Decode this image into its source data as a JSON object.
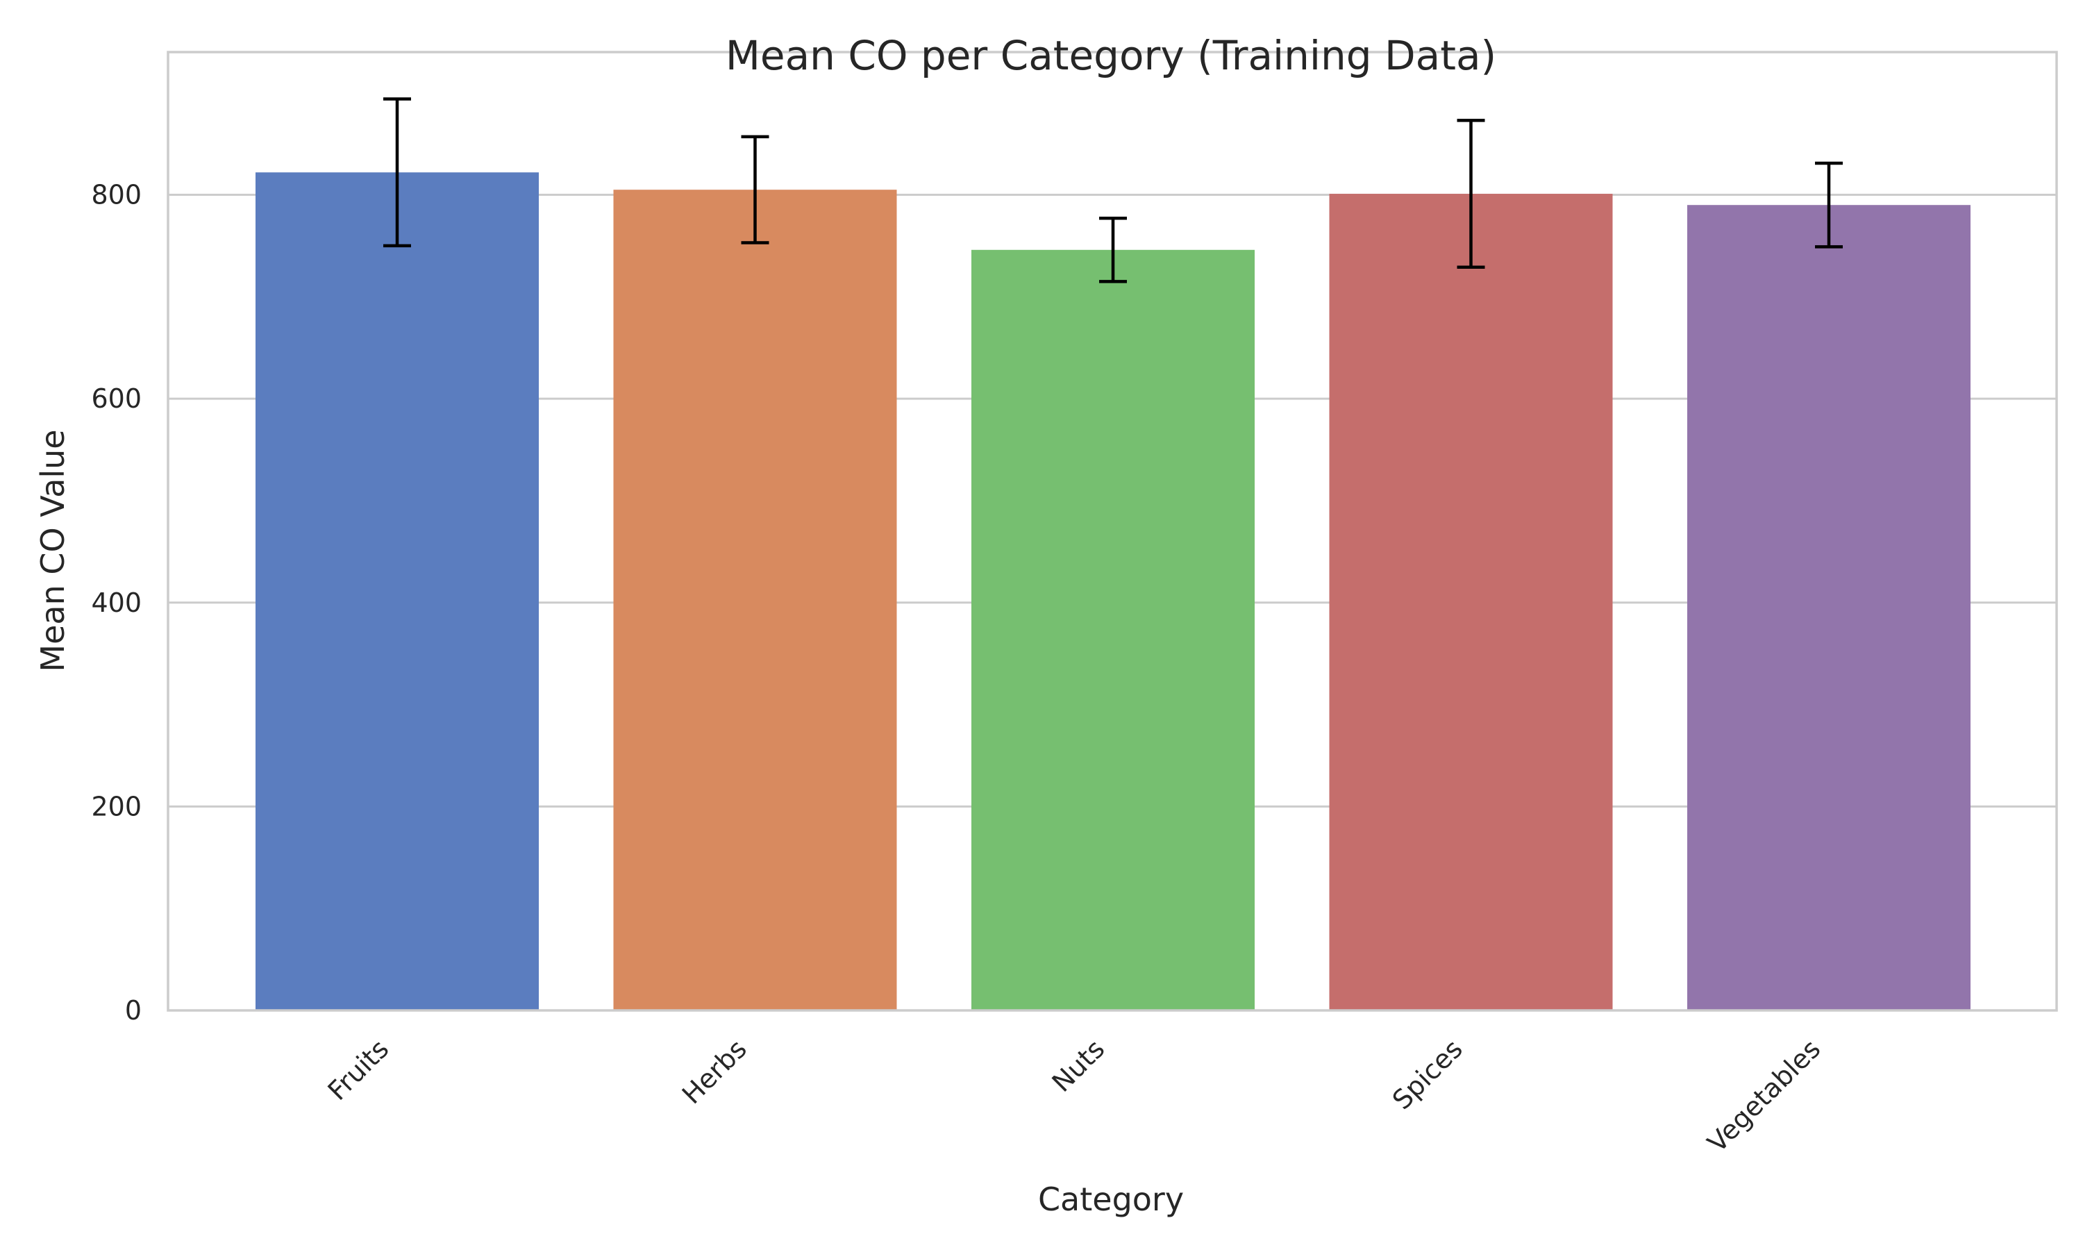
{
  "chart_data": {
    "type": "bar",
    "title": "Mean CO per Category (Training Data)",
    "xlabel": "Category",
    "ylabel": "Mean CO Value",
    "categories": [
      "Fruits",
      "Herbs",
      "Nuts",
      "Spices",
      "Vegetables"
    ],
    "values": [
      822,
      805,
      746,
      801,
      790
    ],
    "error": [
      72,
      52,
      31,
      72,
      41
    ],
    "colors": [
      "#5b7dbf",
      "#d88a5f",
      "#76bf70",
      "#c56e6c",
      "#9275ab"
    ],
    "ylim": [
      0,
      940
    ],
    "yticks": [
      0,
      200,
      400,
      600,
      800
    ],
    "grid": "horizontal",
    "legend": "none"
  }
}
